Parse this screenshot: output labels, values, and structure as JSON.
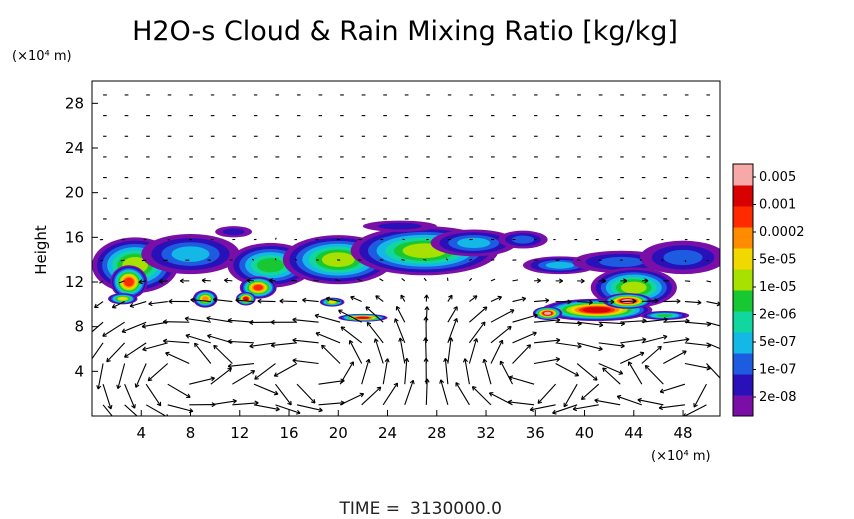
{
  "chart_data": {
    "type": "heatmap",
    "title": "H2O-s Cloud & Rain Mixing Ratio [kg/kg]",
    "ylabel": "Height",
    "yunit": "(×10⁴ m)",
    "xunit": "(×10⁴ m)",
    "xlim": [
      0,
      51
    ],
    "ylim": [
      0,
      30
    ],
    "xticks": [
      "4",
      "8",
      "12",
      "16",
      "20",
      "24",
      "28",
      "32",
      "36",
      "40",
      "44",
      "48"
    ],
    "yticks": [
      "4",
      "8",
      "12",
      "16",
      "20",
      "24",
      "28"
    ],
    "colorbar": {
      "labels": [
        "0.005",
        "0.001",
        "0.0002",
        "5e-05",
        "1e-05",
        "2e-06",
        "5e-07",
        "1e-07",
        "2e-08"
      ],
      "colors": [
        "#7a0fa8",
        "#2a10b8",
        "#1d5ce0",
        "#14b8e6",
        "#12d6a0",
        "#18c832",
        "#a8e000",
        "#f0d800",
        "#ff8c00",
        "#ff2a00",
        "#d80000",
        "#f7a8a8"
      ]
    },
    "overlay": "wind vector arrows",
    "vortices": [
      {
        "x": 18.5,
        "y": 3.5,
        "sense": "ccw"
      },
      {
        "x": 36.0,
        "y": 3.5,
        "sense": "cw"
      },
      {
        "x": 7.0,
        "y": 4.0,
        "sense": "ccw"
      },
      {
        "x": 48.0,
        "y": 3.5,
        "sense": "cw"
      }
    ],
    "cloud_blobs": [
      {
        "cx": 3.5,
        "cy": 13.5,
        "rx": 3.5,
        "ry": 2.5,
        "level": 6
      },
      {
        "cx": 8.0,
        "cy": 14.5,
        "rx": 4.0,
        "ry": 1.8,
        "level": 3
      },
      {
        "cx": 11.5,
        "cy": 16.5,
        "rx": 1.5,
        "ry": 0.5,
        "level": 1
      },
      {
        "cx": 3.0,
        "cy": 12.0,
        "rx": 1.5,
        "ry": 1.5,
        "level": 9
      },
      {
        "cx": 2.5,
        "cy": 10.5,
        "rx": 1.2,
        "ry": 0.5,
        "level": 7
      },
      {
        "cx": 9.2,
        "cy": 10.5,
        "rx": 1.0,
        "ry": 0.8,
        "level": 8
      },
      {
        "cx": 14.5,
        "cy": 13.5,
        "rx": 3.5,
        "ry": 2.0,
        "level": 5
      },
      {
        "cx": 13.5,
        "cy": 11.5,
        "rx": 1.5,
        "ry": 1.0,
        "level": 9
      },
      {
        "cx": 12.5,
        "cy": 10.5,
        "rx": 0.8,
        "ry": 0.6,
        "level": 10
      },
      {
        "cx": 20.0,
        "cy": 14.0,
        "rx": 4.5,
        "ry": 2.2,
        "level": 6
      },
      {
        "cx": 27.0,
        "cy": 14.8,
        "rx": 6.0,
        "ry": 2.2,
        "level": 6
      },
      {
        "cx": 31.0,
        "cy": 15.5,
        "rx": 3.5,
        "ry": 1.2,
        "level": 3
      },
      {
        "cx": 35.0,
        "cy": 15.8,
        "rx": 2.0,
        "ry": 0.8,
        "level": 2
      },
      {
        "cx": 25.0,
        "cy": 17.0,
        "rx": 3.0,
        "ry": 0.5,
        "level": 1
      },
      {
        "cx": 22.0,
        "cy": 8.8,
        "rx": 2.0,
        "ry": 0.35,
        "level": 10
      },
      {
        "cx": 19.5,
        "cy": 10.2,
        "rx": 1.0,
        "ry": 0.4,
        "level": 7
      },
      {
        "cx": 38.0,
        "cy": 13.5,
        "rx": 3.0,
        "ry": 0.8,
        "level": 3
      },
      {
        "cx": 43.0,
        "cy": 13.8,
        "rx": 4.0,
        "ry": 1.0,
        "level": 2
      },
      {
        "cx": 48.0,
        "cy": 14.2,
        "rx": 3.5,
        "ry": 1.5,
        "level": 2
      },
      {
        "cx": 44.0,
        "cy": 11.5,
        "rx": 3.5,
        "ry": 1.8,
        "level": 6
      },
      {
        "cx": 41.0,
        "cy": 9.5,
        "rx": 4.5,
        "ry": 1.0,
        "level": 10
      },
      {
        "cx": 43.5,
        "cy": 10.3,
        "rx": 2.0,
        "ry": 0.7,
        "level": 11
      },
      {
        "cx": 37.0,
        "cy": 9.2,
        "rx": 1.2,
        "ry": 0.6,
        "level": 11
      },
      {
        "cx": 46.5,
        "cy": 9.0,
        "rx": 2.0,
        "ry": 0.4,
        "level": 5
      }
    ]
  },
  "footer": {
    "time_label": "TIME =",
    "time_value": "3130000.0"
  }
}
